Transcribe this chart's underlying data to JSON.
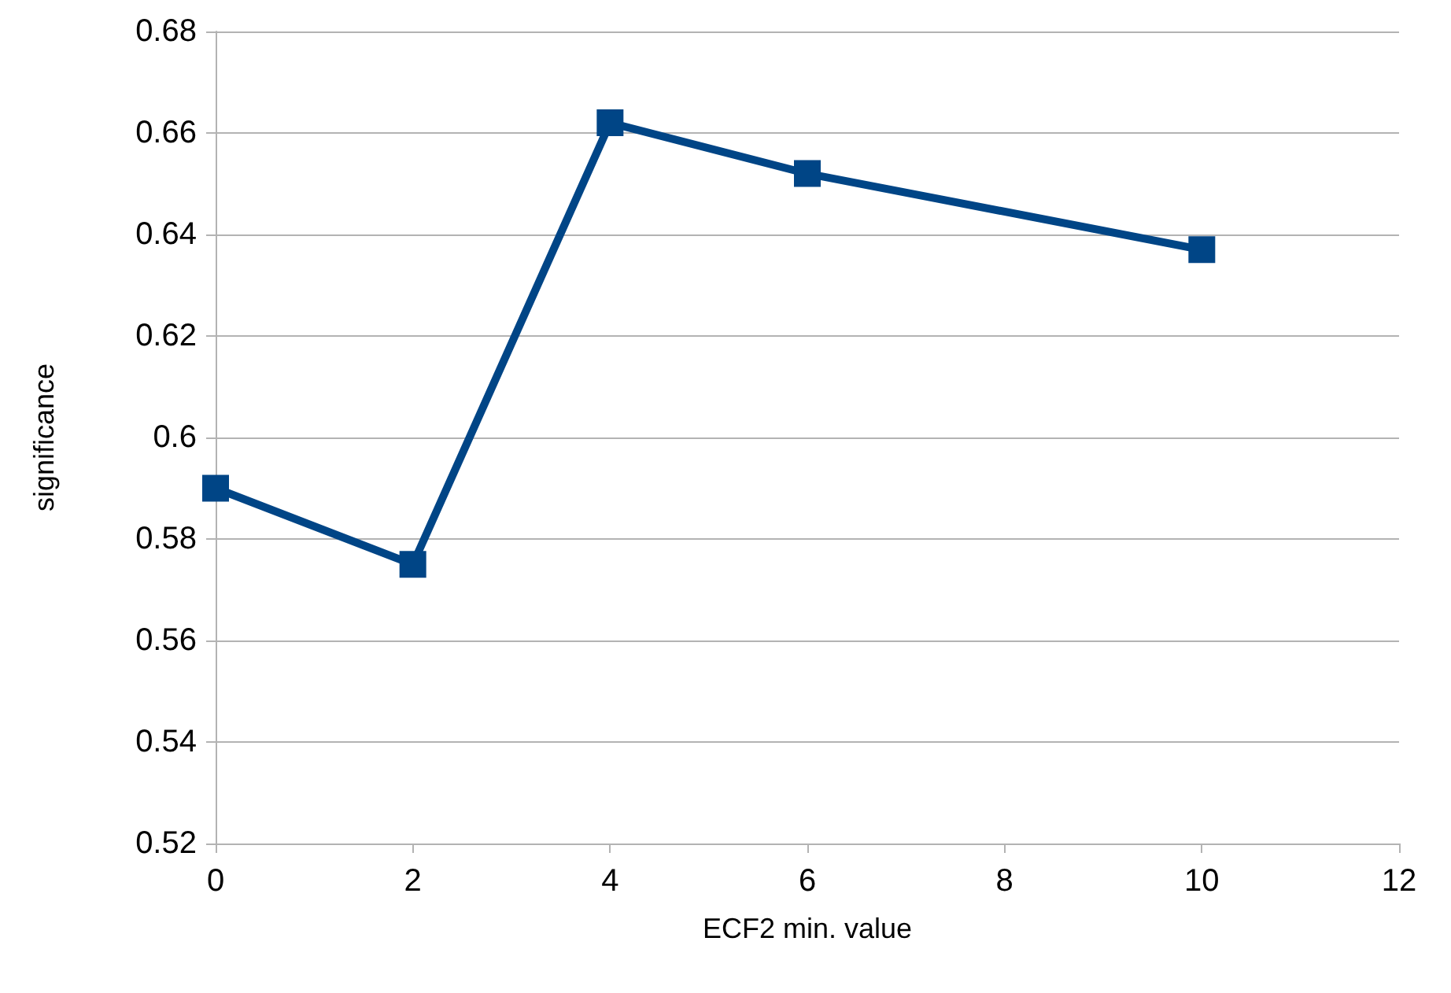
{
  "chart_data": {
    "type": "line",
    "xlabel": "ECF2 min. value",
    "ylabel": "significance",
    "x": [
      0,
      2,
      4,
      6,
      10
    ],
    "series": [
      {
        "color": "#004586",
        "values": [
          0.59,
          0.575,
          0.662,
          0.652,
          0.637
        ]
      }
    ],
    "xlim": [
      0,
      12
    ],
    "xticks": [
      0,
      2,
      4,
      6,
      8,
      10,
      12
    ],
    "ylim": [
      0.52,
      0.68
    ],
    "yticks": [
      0.52,
      0.54,
      0.56,
      0.58,
      0.6,
      0.62,
      0.64,
      0.66,
      0.68
    ],
    "grid": "y",
    "marker": "square",
    "line_style": "solid"
  }
}
